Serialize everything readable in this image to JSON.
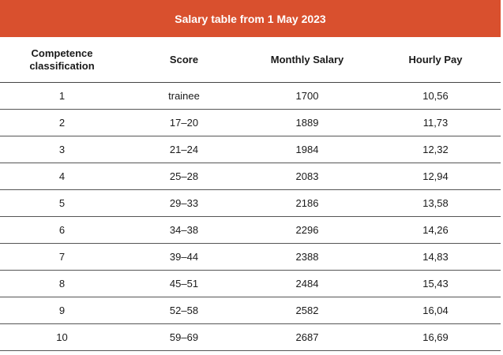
{
  "table": {
    "title": "Salary table from 1 May 2023",
    "headers": {
      "competence": "Competence classification",
      "score": "Score",
      "monthly": "Monthly Salary",
      "hourly": "Hourly Pay"
    },
    "rows": [
      {
        "competence": "1",
        "score": "trainee",
        "monthly": "1700",
        "hourly": "10,56"
      },
      {
        "competence": "2",
        "score": "17–20",
        "monthly": "1889",
        "hourly": "11,73"
      },
      {
        "competence": "3",
        "score": "21–24",
        "monthly": "1984",
        "hourly": "12,32"
      },
      {
        "competence": "4",
        "score": "25–28",
        "monthly": "2083",
        "hourly": "12,94"
      },
      {
        "competence": "5",
        "score": "29–33",
        "monthly": "2186",
        "hourly": "13,58"
      },
      {
        "competence": "6",
        "score": "34–38",
        "monthly": "2296",
        "hourly": "14,26"
      },
      {
        "competence": "7",
        "score": "39–44",
        "monthly": "2388",
        "hourly": "14,83"
      },
      {
        "competence": "8",
        "score": "45–51",
        "monthly": "2484",
        "hourly": "15,43"
      },
      {
        "competence": "9",
        "score": "52–58",
        "monthly": "2582",
        "hourly": "16,04"
      },
      {
        "competence": "10",
        "score": "59–69",
        "monthly": "2687",
        "hourly": "16,69"
      }
    ]
  },
  "colors": {
    "title_bar": "#d9502e",
    "title_text": "#ffffff"
  }
}
